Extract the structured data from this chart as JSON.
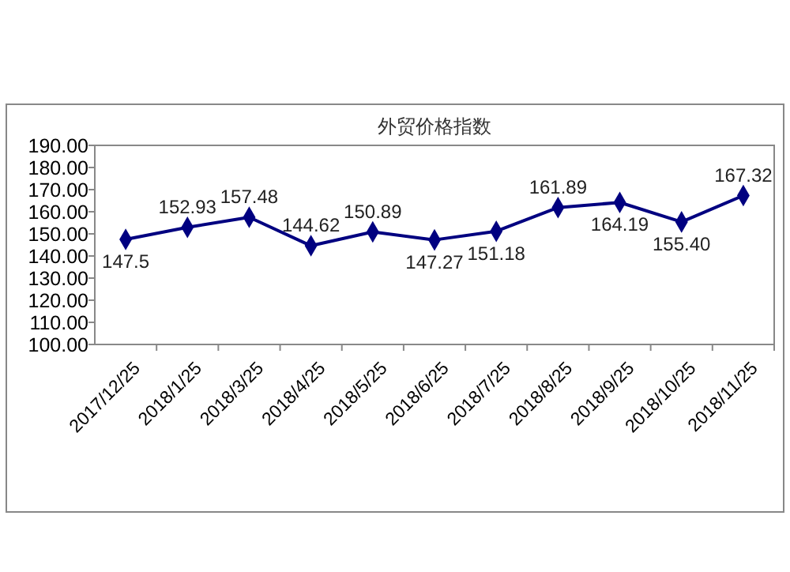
{
  "chart_data": {
    "type": "line",
    "title": "外贸价格指数",
    "categories": [
      "2017/12/25",
      "2018/1/25",
      "2018/3/25",
      "2018/4/25",
      "2018/5/25",
      "2018/6/25",
      "2018/7/25",
      "2018/8/25",
      "2018/9/25",
      "2018/10/25",
      "2018/11/25"
    ],
    "series": [
      {
        "color": "#000080",
        "values": [
          147.5,
          152.93,
          157.48,
          144.62,
          150.89,
          147.27,
          151.18,
          161.89,
          164.19,
          155.4,
          167.32
        ],
        "value_labels": [
          "147.5",
          "152.93",
          "157.48",
          "144.62",
          "150.89",
          "147.27",
          "151.18",
          "161.89",
          "164.19",
          "155.40",
          "167.32"
        ]
      }
    ],
    "ylim": [
      100,
      190
    ],
    "yticks": [
      {
        "value": 100,
        "label": "100.00"
      },
      {
        "value": 110,
        "label": "110.00"
      },
      {
        "value": 120,
        "label": "120.00"
      },
      {
        "value": 130,
        "label": "130.00"
      },
      {
        "value": 140,
        "label": "140.00"
      },
      {
        "value": 150,
        "label": "150.00"
      },
      {
        "value": 160,
        "label": "160.00"
      },
      {
        "value": 170,
        "label": "170.00"
      },
      {
        "value": 180,
        "label": "180.00"
      },
      {
        "value": 190,
        "label": "190.00"
      }
    ],
    "marker": "diamond",
    "line_style": "solid",
    "grid": false
  }
}
